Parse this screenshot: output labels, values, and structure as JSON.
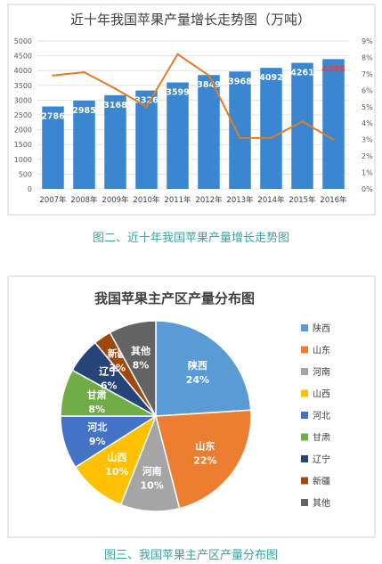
{
  "chart_data": [
    {
      "type": "bar",
      "title": "近十年我国苹果产量增长走势图（万吨）",
      "categories": [
        "2007年",
        "2008年",
        "2009年",
        "2010年",
        "2011年",
        "2012年",
        "2013年",
        "2014年",
        "2015年",
        "2016年"
      ],
      "series": [
        {
          "values": [
            2786,
            2985,
            3168,
            3326,
            3599,
            3849,
            3968,
            4092,
            4261,
            4388
          ],
          "color": "#3b86d0",
          "highlight_last_label_color": "#e8442c"
        },
        {
          "type": "line",
          "axis": "right",
          "values": [
            6.9,
            7.1,
            6.1,
            5.0,
            8.2,
            6.9,
            3.1,
            3.1,
            4.1,
            3.0
          ],
          "color": "#e07b28"
        }
      ],
      "y_left": {
        "min": 0,
        "max": 5000,
        "step": 500,
        "ticks": [
          "0",
          "500",
          "1000",
          "1500",
          "2000",
          "2500",
          "3000",
          "3500",
          "4000",
          "4500",
          "5000"
        ]
      },
      "y_right": {
        "min": 0,
        "max": 9,
        "step": 1,
        "ticks": [
          "0%",
          "1%",
          "2%",
          "3%",
          "4%",
          "5%",
          "6%",
          "7%",
          "8%",
          "9%"
        ]
      },
      "grid": true,
      "caption": "图二、近十年我国苹果产量增长走势图"
    },
    {
      "type": "pie",
      "title": "我国苹果主产区产量分布图",
      "slices": [
        {
          "label": "陕西",
          "value": 24,
          "text": "24%",
          "color": "#5b9bd5"
        },
        {
          "label": "山东",
          "value": 22,
          "text": "22%",
          "color": "#ed7d31"
        },
        {
          "label": "河南",
          "value": 10,
          "text": "10%",
          "color": "#a5a5a5"
        },
        {
          "label": "山西",
          "value": 10,
          "text": "10%",
          "color": "#ffc000"
        },
        {
          "label": "河北",
          "value": 9,
          "text": "9%",
          "color": "#4472c4"
        },
        {
          "label": "甘肃",
          "value": 8,
          "text": "8%",
          "color": "#70ad47"
        },
        {
          "label": "辽宁",
          "value": 6,
          "text": "6%",
          "color": "#264478"
        },
        {
          "label": "新疆",
          "value": 3,
          "text": "3%",
          "color": "#9e480e"
        },
        {
          "label": "其他",
          "value": 8,
          "text": "8%",
          "color": "#636363"
        }
      ],
      "legend": "right",
      "caption": "图三、我国苹果主产区产量分布图"
    }
  ]
}
